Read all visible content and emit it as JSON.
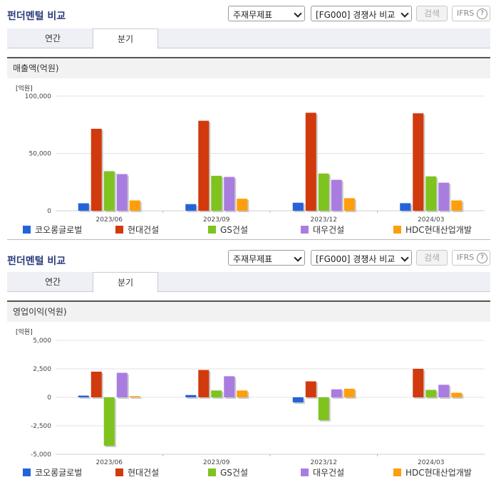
{
  "panels": [
    {
      "title": "펀더멘털 비교",
      "select1": "주재무제표",
      "select2": "[FG000] 경쟁사 비교",
      "search_label": "검색",
      "ifrs_label": "IFRS",
      "ifrs_help": "?",
      "tabs": [
        {
          "label": "연간",
          "active": false
        },
        {
          "label": "분기",
          "active": true
        }
      ],
      "section_label": "매출액(억원)",
      "unit_label": "[억원]"
    },
    {
      "title": "펀더멘털 비교",
      "select1": "주재무제표",
      "select2": "[FG000] 경쟁사 비교",
      "search_label": "검색",
      "ifrs_label": "IFRS",
      "ifrs_help": "?",
      "tabs": [
        {
          "label": "연간",
          "active": false
        },
        {
          "label": "분기",
          "active": true
        }
      ],
      "section_label": "영업이익(억원)",
      "unit_label": "[억원]"
    }
  ],
  "chart_data": [
    {
      "type": "bar",
      "categories": [
        "2023/06",
        "2023/09",
        "2023/12",
        "2024/03"
      ],
      "ylim": [
        0,
        100000
      ],
      "yticks": [
        0,
        50000,
        100000
      ],
      "ytick_labels": [
        "0",
        "50,000",
        "100,000"
      ],
      "legend_position": "bottom",
      "series": [
        {
          "name": "코오롱글로벌",
          "color": "#2563d9",
          "values": [
            6500,
            5800,
            7000,
            6600
          ]
        },
        {
          "name": "현대건설",
          "color": "#d13a0d",
          "values": [
            71500,
            78500,
            85500,
            85000
          ]
        },
        {
          "name": "GS건설",
          "color": "#7fc31f",
          "values": [
            34500,
            30500,
            32500,
            30000
          ]
        },
        {
          "name": "대우건설",
          "color": "#a97de0",
          "values": [
            32000,
            29500,
            27000,
            24500
          ]
        },
        {
          "name": "HDC현대산업개발",
          "color": "#ff9e0d",
          "values": [
            9000,
            10500,
            11000,
            9000
          ]
        }
      ]
    },
    {
      "type": "bar",
      "categories": [
        "2023/06",
        "2023/09",
        "2023/12",
        "2024/03"
      ],
      "ylim": [
        -5000,
        5000
      ],
      "yticks": [
        -5000,
        -2500,
        0,
        2500,
        5000
      ],
      "ytick_labels": [
        "-5,000",
        "-2,500",
        "0",
        "2,500",
        "5,000"
      ],
      "legend_position": "bottom",
      "series": [
        {
          "name": "코오롱글로벌",
          "color": "#2563d9",
          "values": [
            150,
            200,
            -450,
            0
          ]
        },
        {
          "name": "현대건설",
          "color": "#d13a0d",
          "values": [
            2250,
            2400,
            1400,
            2500
          ]
        },
        {
          "name": "GS건설",
          "color": "#7fc31f",
          "values": [
            -4250,
            600,
            -2000,
            650
          ]
        },
        {
          "name": "대우건설",
          "color": "#a97de0",
          "values": [
            2150,
            1850,
            700,
            1100
          ]
        },
        {
          "name": "HDC현대산업개발",
          "color": "#ff9e0d",
          "values": [
            100,
            600,
            750,
            400
          ]
        }
      ]
    }
  ]
}
